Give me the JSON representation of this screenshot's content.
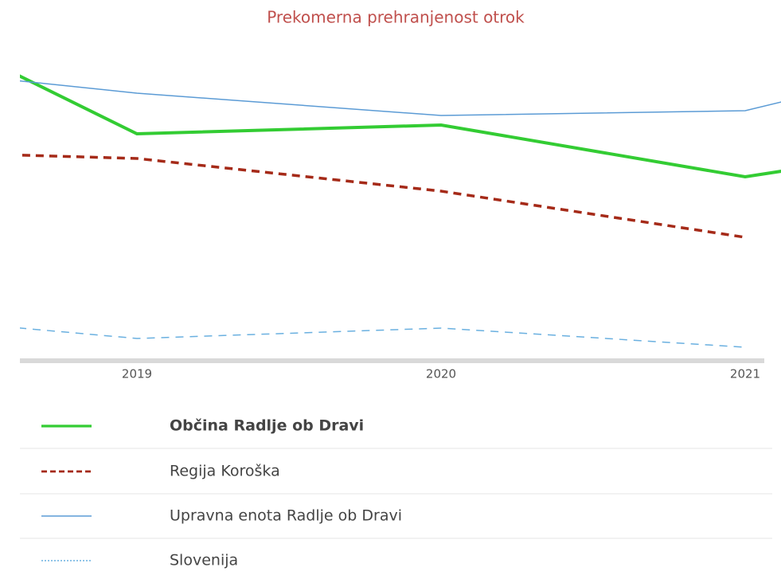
{
  "chart_data": {
    "type": "line",
    "title": "Prekomerna prehranjenost otrok",
    "categories": [
      null,
      "2019",
      "2020",
      "2021",
      null
    ],
    "ylim": [
      0,
      40
    ],
    "series": [
      {
        "name": "Občina Radlje ob Dravi",
        "color": "#33cc33",
        "dash": "solid",
        "values": [
          47,
          28.2,
          29.3,
          22.8,
          28.7
        ]
      },
      {
        "name": "Regija Koroška",
        "color": "#a52a18",
        "dash": "dashed",
        "values": [
          26.2,
          25.1,
          21.0,
          15.2,
          null
        ]
      },
      {
        "name": "Upravna enota Radlje ob Dravi",
        "color": "#5b9bd5",
        "dash": "solid",
        "values": [
          37.3,
          33.3,
          30.5,
          31.1,
          40.3
        ]
      },
      {
        "name": "Slovenija",
        "color": "#6ab0e0",
        "dash": "dashed",
        "values": [
          5.9,
          2.5,
          3.8,
          1.4,
          null
        ]
      }
    ]
  }
}
